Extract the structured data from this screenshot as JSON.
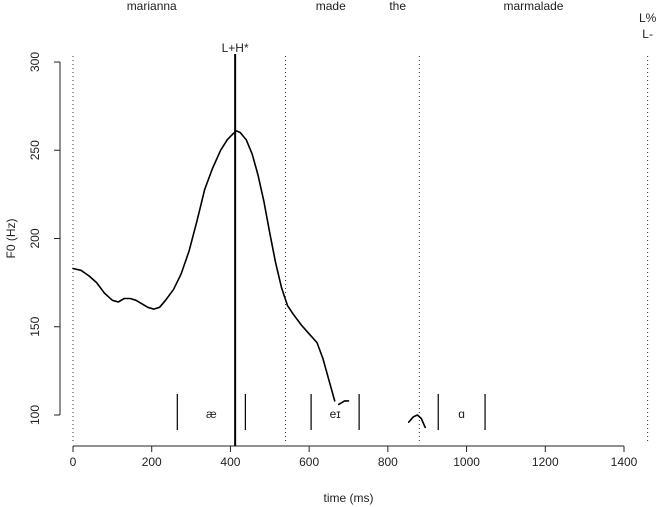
{
  "chart_data": {
    "type": "line",
    "xlabel": "time (ms)",
    "ylabel": "F0 (Hz)",
    "xlim": [
      0,
      1400
    ],
    "ylim": [
      90,
      300
    ],
    "x_ticks": [
      0,
      200,
      400,
      600,
      800,
      1000,
      1200,
      1400
    ],
    "y_ticks": [
      100,
      150,
      200,
      250,
      300
    ],
    "word_boundaries_ms": [
      0,
      540,
      880,
      1460
    ],
    "words": [
      {
        "text": "marianna",
        "x": 200
      },
      {
        "text": "made",
        "x": 655
      },
      {
        "text": "the",
        "x": 825
      },
      {
        "text": "marmalade",
        "x": 1170
      }
    ],
    "accent": {
      "label": "L+H*",
      "x": 412
    },
    "boundary_tone": {
      "label": "L%",
      "label2": "L-",
      "x": 1460
    },
    "vowel_intervals": [
      {
        "label": "æ",
        "start": 265,
        "end": 438
      },
      {
        "label": "eɪ",
        "start": 605,
        "end": 727
      },
      {
        "label": "ɑ",
        "start": 928,
        "end": 1047
      }
    ],
    "series": [
      {
        "segments": [
          [
            [
              0,
              183
            ],
            [
              20,
              182
            ],
            [
              40,
              179
            ],
            [
              60,
              175
            ],
            [
              80,
              169
            ],
            [
              100,
              165
            ],
            [
              115,
              164
            ],
            [
              130,
              166
            ],
            [
              145,
              166
            ],
            [
              160,
              165
            ],
            [
              175,
              163
            ],
            [
              190,
              161
            ],
            [
              205,
              160
            ],
            [
              220,
              161
            ],
            [
              235,
              165
            ],
            [
              255,
              171
            ],
            [
              275,
              180
            ],
            [
              295,
              193
            ],
            [
              315,
              210
            ],
            [
              335,
              228
            ],
            [
              355,
              240
            ],
            [
              375,
              250
            ],
            [
              392,
              256
            ],
            [
              405,
              259
            ],
            [
              415,
              261
            ],
            [
              425,
              260
            ],
            [
              440,
              256
            ],
            [
              455,
              248
            ],
            [
              470,
              236
            ],
            [
              485,
              221
            ],
            [
              500,
              203
            ],
            [
              515,
              186
            ],
            [
              530,
              172
            ],
            [
              545,
              162
            ],
            [
              560,
              157
            ],
            [
              580,
              151
            ],
            [
              600,
              146
            ],
            [
              620,
              141
            ],
            [
              635,
              132
            ],
            [
              650,
              120
            ],
            [
              665,
              108
            ]
          ],
          [
            [
              675,
              106
            ],
            [
              690,
              108
            ],
            [
              700,
              108
            ]
          ],
          [
            [
              853,
              96
            ],
            [
              865,
              99
            ],
            [
              875,
              100
            ],
            [
              885,
              98
            ],
            [
              895,
              93
            ]
          ]
        ]
      }
    ]
  }
}
